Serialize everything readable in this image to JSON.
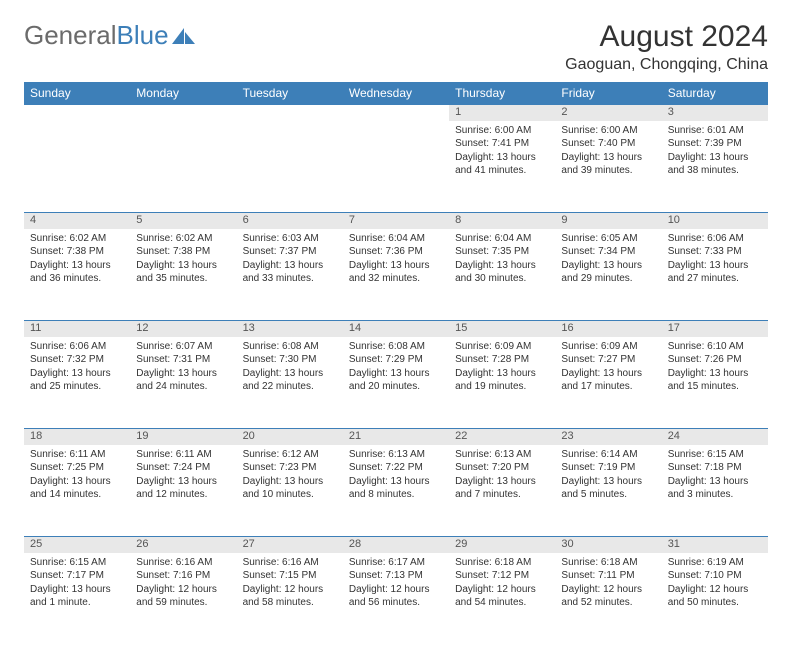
{
  "logo": {
    "text1": "General",
    "text2": "Blue",
    "icon_color": "#3d7fb8"
  },
  "title": "August 2024",
  "location": "Gaoguan, Chongqing, China",
  "colors": {
    "header_bg": "#3d7fb8",
    "daynum_bg": "#e8e8e8",
    "text": "#333333",
    "logo_gray": "#6b6b6b"
  },
  "day_headers": [
    "Sunday",
    "Monday",
    "Tuesday",
    "Wednesday",
    "Thursday",
    "Friday",
    "Saturday"
  ],
  "weeks": [
    [
      null,
      null,
      null,
      null,
      {
        "n": "1",
        "sr": "6:00 AM",
        "ss": "7:41 PM",
        "dl": "13 hours and 41 minutes."
      },
      {
        "n": "2",
        "sr": "6:00 AM",
        "ss": "7:40 PM",
        "dl": "13 hours and 39 minutes."
      },
      {
        "n": "3",
        "sr": "6:01 AM",
        "ss": "7:39 PM",
        "dl": "13 hours and 38 minutes."
      }
    ],
    [
      {
        "n": "4",
        "sr": "6:02 AM",
        "ss": "7:38 PM",
        "dl": "13 hours and 36 minutes."
      },
      {
        "n": "5",
        "sr": "6:02 AM",
        "ss": "7:38 PM",
        "dl": "13 hours and 35 minutes."
      },
      {
        "n": "6",
        "sr": "6:03 AM",
        "ss": "7:37 PM",
        "dl": "13 hours and 33 minutes."
      },
      {
        "n": "7",
        "sr": "6:04 AM",
        "ss": "7:36 PM",
        "dl": "13 hours and 32 minutes."
      },
      {
        "n": "8",
        "sr": "6:04 AM",
        "ss": "7:35 PM",
        "dl": "13 hours and 30 minutes."
      },
      {
        "n": "9",
        "sr": "6:05 AM",
        "ss": "7:34 PM",
        "dl": "13 hours and 29 minutes."
      },
      {
        "n": "10",
        "sr": "6:06 AM",
        "ss": "7:33 PM",
        "dl": "13 hours and 27 minutes."
      }
    ],
    [
      {
        "n": "11",
        "sr": "6:06 AM",
        "ss": "7:32 PM",
        "dl": "13 hours and 25 minutes."
      },
      {
        "n": "12",
        "sr": "6:07 AM",
        "ss": "7:31 PM",
        "dl": "13 hours and 24 minutes."
      },
      {
        "n": "13",
        "sr": "6:08 AM",
        "ss": "7:30 PM",
        "dl": "13 hours and 22 minutes."
      },
      {
        "n": "14",
        "sr": "6:08 AM",
        "ss": "7:29 PM",
        "dl": "13 hours and 20 minutes."
      },
      {
        "n": "15",
        "sr": "6:09 AM",
        "ss": "7:28 PM",
        "dl": "13 hours and 19 minutes."
      },
      {
        "n": "16",
        "sr": "6:09 AM",
        "ss": "7:27 PM",
        "dl": "13 hours and 17 minutes."
      },
      {
        "n": "17",
        "sr": "6:10 AM",
        "ss": "7:26 PM",
        "dl": "13 hours and 15 minutes."
      }
    ],
    [
      {
        "n": "18",
        "sr": "6:11 AM",
        "ss": "7:25 PM",
        "dl": "13 hours and 14 minutes."
      },
      {
        "n": "19",
        "sr": "6:11 AM",
        "ss": "7:24 PM",
        "dl": "13 hours and 12 minutes."
      },
      {
        "n": "20",
        "sr": "6:12 AM",
        "ss": "7:23 PM",
        "dl": "13 hours and 10 minutes."
      },
      {
        "n": "21",
        "sr": "6:13 AM",
        "ss": "7:22 PM",
        "dl": "13 hours and 8 minutes."
      },
      {
        "n": "22",
        "sr": "6:13 AM",
        "ss": "7:20 PM",
        "dl": "13 hours and 7 minutes."
      },
      {
        "n": "23",
        "sr": "6:14 AM",
        "ss": "7:19 PM",
        "dl": "13 hours and 5 minutes."
      },
      {
        "n": "24",
        "sr": "6:15 AM",
        "ss": "7:18 PM",
        "dl": "13 hours and 3 minutes."
      }
    ],
    [
      {
        "n": "25",
        "sr": "6:15 AM",
        "ss": "7:17 PM",
        "dl": "13 hours and 1 minute."
      },
      {
        "n": "26",
        "sr": "6:16 AM",
        "ss": "7:16 PM",
        "dl": "12 hours and 59 minutes."
      },
      {
        "n": "27",
        "sr": "6:16 AM",
        "ss": "7:15 PM",
        "dl": "12 hours and 58 minutes."
      },
      {
        "n": "28",
        "sr": "6:17 AM",
        "ss": "7:13 PM",
        "dl": "12 hours and 56 minutes."
      },
      {
        "n": "29",
        "sr": "6:18 AM",
        "ss": "7:12 PM",
        "dl": "12 hours and 54 minutes."
      },
      {
        "n": "30",
        "sr": "6:18 AM",
        "ss": "7:11 PM",
        "dl": "12 hours and 52 minutes."
      },
      {
        "n": "31",
        "sr": "6:19 AM",
        "ss": "7:10 PM",
        "dl": "12 hours and 50 minutes."
      }
    ]
  ],
  "labels": {
    "sunrise": "Sunrise:",
    "sunset": "Sunset:",
    "daylight": "Daylight:"
  }
}
